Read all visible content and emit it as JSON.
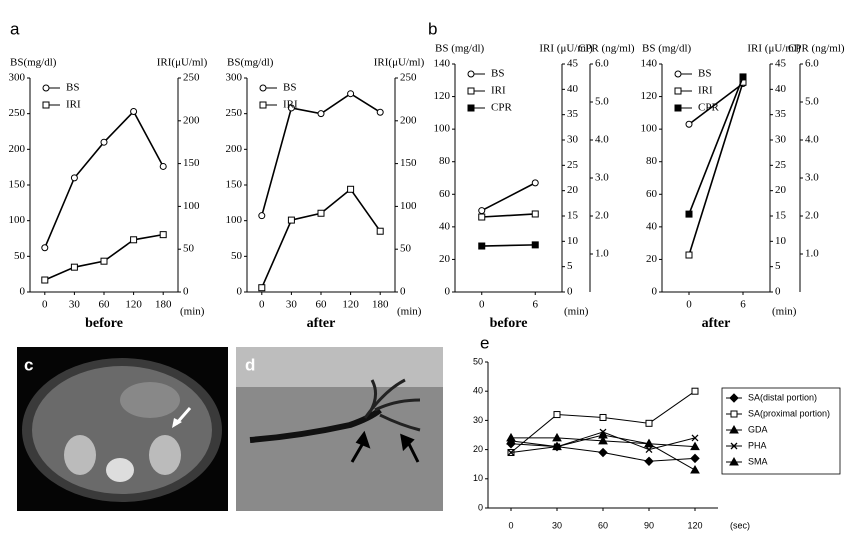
{
  "panel_labels": [
    "a",
    "b",
    "c",
    "d",
    "e"
  ],
  "chart_data": [
    {
      "type": "line",
      "xlabel": "before",
      "x_unit": "(min)",
      "categories": [
        "0",
        "30",
        "60",
        "120",
        "180"
      ],
      "ylabel": "BS(mg/dl)",
      "ylim": [
        0,
        300
      ],
      "yticks": [
        0,
        50,
        100,
        150,
        200,
        250,
        300
      ],
      "y2label": "IRI(μU/ml)",
      "y2lim": [
        0,
        250
      ],
      "y2ticks": [
        0,
        50,
        100,
        150,
        200,
        250
      ],
      "series": [
        {
          "name": "BS",
          "marker": "circle-open",
          "color": "#000000",
          "axis": "y",
          "values": [
            62,
            160,
            210,
            253,
            176
          ]
        },
        {
          "name": "IRI",
          "marker": "square-open",
          "color": "#000000",
          "axis": "y2",
          "values": [
            14,
            29,
            36,
            61,
            67
          ]
        }
      ]
    },
    {
      "type": "line",
      "xlabel": "after",
      "x_unit": "(min)",
      "categories": [
        "0",
        "30",
        "60",
        "120",
        "180"
      ],
      "ylabel": "BS(mg/dl)",
      "ylim": [
        0,
        300
      ],
      "yticks": [
        0,
        50,
        100,
        150,
        200,
        250,
        300
      ],
      "y2label": "IRI(μU/ml)",
      "y2lim": [
        0,
        250
      ],
      "y2ticks": [
        0,
        50,
        100,
        150,
        200,
        250
      ],
      "series": [
        {
          "name": "BS",
          "marker": "circle-open",
          "color": "#000000",
          "axis": "y",
          "values": [
            107,
            258,
            250,
            278,
            252
          ]
        },
        {
          "name": "IRI",
          "marker": "square-open",
          "color": "#000000",
          "axis": "y2",
          "values": [
            5,
            84,
            92,
            120,
            71
          ]
        }
      ]
    },
    {
      "type": "line",
      "xlabel": "before",
      "x_unit": "(min)",
      "categories": [
        "0",
        "6"
      ],
      "ylabel": "BS (mg/dl)",
      "ylim": [
        0,
        140
      ],
      "yticks": [
        0,
        20,
        40,
        60,
        80,
        100,
        120,
        140
      ],
      "y2label": "IRI (μU/ml)",
      "y2lim": [
        0,
        45
      ],
      "y2ticks": [
        0,
        5,
        10,
        15,
        20,
        25,
        30,
        35,
        40,
        45
      ],
      "y3label": "CPR (ng/ml)",
      "y3lim": [
        0,
        6
      ],
      "y3ticks": [
        {
          "value": 1,
          "label": "1.0"
        },
        {
          "value": 2,
          "label": "2.0"
        },
        {
          "value": 3,
          "label": "3.0"
        },
        {
          "value": 4,
          "label": "4.0"
        },
        {
          "value": 5,
          "label": "5.0"
        },
        {
          "value": 6,
          "label": "6.0"
        }
      ],
      "series": [
        {
          "name": "BS",
          "marker": "circle-open",
          "color": "#000000",
          "axis": "y",
          "values": [
            50,
            67
          ]
        },
        {
          "name": "IRI",
          "marker": "square-open",
          "color": "#000000",
          "axis": "y2",
          "values": [
            14.8,
            15.4
          ]
        },
        {
          "name": "CPR",
          "marker": "square-filled",
          "color": "#000000",
          "axis": "y3",
          "values": [
            1.21,
            1.24
          ]
        }
      ]
    },
    {
      "type": "line",
      "xlabel": "after",
      "x_unit": "(min)",
      "categories": [
        "0",
        "6"
      ],
      "ylabel": "BS (mg/dl)",
      "ylim": [
        0,
        140
      ],
      "yticks": [
        0,
        20,
        40,
        60,
        80,
        100,
        120,
        140
      ],
      "y2label": "IRI (μU/ml)",
      "y2lim": [
        0,
        45
      ],
      "y2ticks": [
        0,
        5,
        10,
        15,
        20,
        25,
        30,
        35,
        40,
        45
      ],
      "y3label": "CPR (ng/ml)",
      "y3lim": [
        0,
        6
      ],
      "y3ticks": [
        {
          "value": 1,
          "label": "1.0"
        },
        {
          "value": 2,
          "label": "2.0"
        },
        {
          "value": 3,
          "label": "3.0"
        },
        {
          "value": 4,
          "label": "4.0"
        },
        {
          "value": 5,
          "label": "5.0"
        },
        {
          "value": 6,
          "label": "6.0"
        }
      ],
      "series": [
        {
          "name": "BS",
          "marker": "circle-open",
          "color": "#000000",
          "axis": "y",
          "values": [
            103,
            128
          ]
        },
        {
          "name": "IRI",
          "marker": "square-open",
          "color": "#000000",
          "axis": "y2",
          "values": [
            7.3,
            41.4
          ]
        },
        {
          "name": "CPR",
          "marker": "square-filled",
          "color": "#000000",
          "axis": "y3",
          "values": [
            2.05,
            5.66
          ]
        }
      ]
    },
    {
      "type": "line",
      "x_unit": "(sec)",
      "categories": [
        "0",
        "30",
        "60",
        "90",
        "120"
      ],
      "ylim": [
        0,
        50
      ],
      "yticks": [
        0,
        10,
        20,
        30,
        40,
        50
      ],
      "legend": "right",
      "series": [
        {
          "name": "SA(distal portion)",
          "marker": "diamond",
          "color": "#000000",
          "axis": "y",
          "values": [
            22,
            21,
            19,
            16,
            17
          ]
        },
        {
          "name": "SA(proximal portion)",
          "marker": "square-open",
          "color": "#000000",
          "axis": "y",
          "values": [
            19,
            32,
            31,
            29,
            40
          ]
        },
        {
          "name": "GDA",
          "marker": "triangle",
          "color": "#000000",
          "axis": "y",
          "values": [
            23,
            21,
            25,
            22,
            21
          ]
        },
        {
          "name": "PHA",
          "marker": "x",
          "color": "#000000",
          "axis": "y",
          "values": [
            19,
            21,
            26,
            20,
            24
          ]
        },
        {
          "name": "SMA",
          "marker": "triangle",
          "color": "#000000",
          "axis": "y",
          "values": [
            24,
            24,
            23,
            22,
            13
          ]
        }
      ]
    }
  ]
}
